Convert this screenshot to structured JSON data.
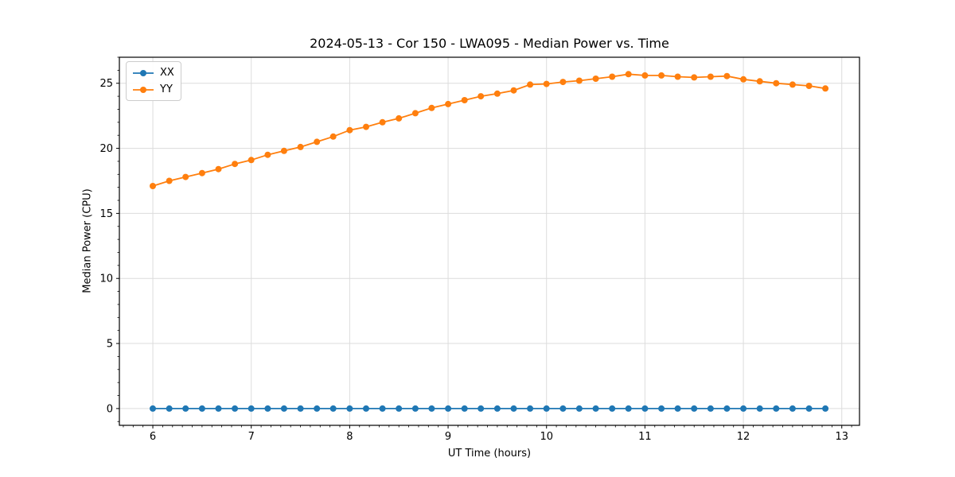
{
  "chart_data": {
    "type": "line",
    "title": "2024-05-13 - Cor 150 - LWA095 - Median Power vs. Time",
    "xlabel": "UT Time (hours)",
    "ylabel": "Median Power (CPU)",
    "xlim": [
      5.66,
      13.18
    ],
    "ylim": [
      -1.29,
      27.0
    ],
    "x_ticks": [
      6,
      7,
      8,
      9,
      10,
      11,
      12,
      13
    ],
    "y_ticks": [
      0,
      5,
      10,
      15,
      20,
      25
    ],
    "x_minor_step": 0.1,
    "y_minor_step": 1,
    "grid": true,
    "legend_position": "upper-left",
    "x": [
      6.0,
      6.167,
      6.333,
      6.5,
      6.667,
      6.833,
      7.0,
      7.167,
      7.333,
      7.5,
      7.667,
      7.833,
      8.0,
      8.167,
      8.333,
      8.5,
      8.667,
      8.833,
      9.0,
      9.167,
      9.333,
      9.5,
      9.667,
      9.833,
      10.0,
      10.167,
      10.333,
      10.5,
      10.667,
      10.833,
      11.0,
      11.167,
      11.333,
      11.5,
      11.667,
      11.833,
      12.0,
      12.167,
      12.333,
      12.5,
      12.667,
      12.833
    ],
    "series": [
      {
        "name": "XX",
        "color": "#1f77b4",
        "values": [
          0,
          0,
          0,
          0,
          0,
          0,
          0,
          0,
          0,
          0,
          0,
          0,
          0,
          0,
          0,
          0,
          0,
          0,
          0,
          0,
          0,
          0,
          0,
          0,
          0,
          0,
          0,
          0,
          0,
          0,
          0,
          0,
          0,
          0,
          0,
          0,
          0,
          0,
          0,
          0,
          0,
          0
        ]
      },
      {
        "name": "YY",
        "color": "#ff7f0e",
        "values": [
          17.1,
          17.5,
          17.8,
          18.1,
          18.4,
          18.8,
          19.1,
          19.5,
          19.8,
          20.1,
          20.5,
          20.9,
          21.4,
          21.65,
          22.0,
          22.3,
          22.7,
          23.1,
          23.4,
          23.7,
          24.0,
          24.2,
          24.45,
          24.9,
          24.95,
          25.1,
          25.2,
          25.35,
          25.5,
          25.7,
          25.6,
          25.6,
          25.5,
          25.45,
          25.5,
          25.55,
          25.3,
          25.15,
          25.0,
          24.9,
          24.8,
          24.6
        ]
      }
    ]
  }
}
